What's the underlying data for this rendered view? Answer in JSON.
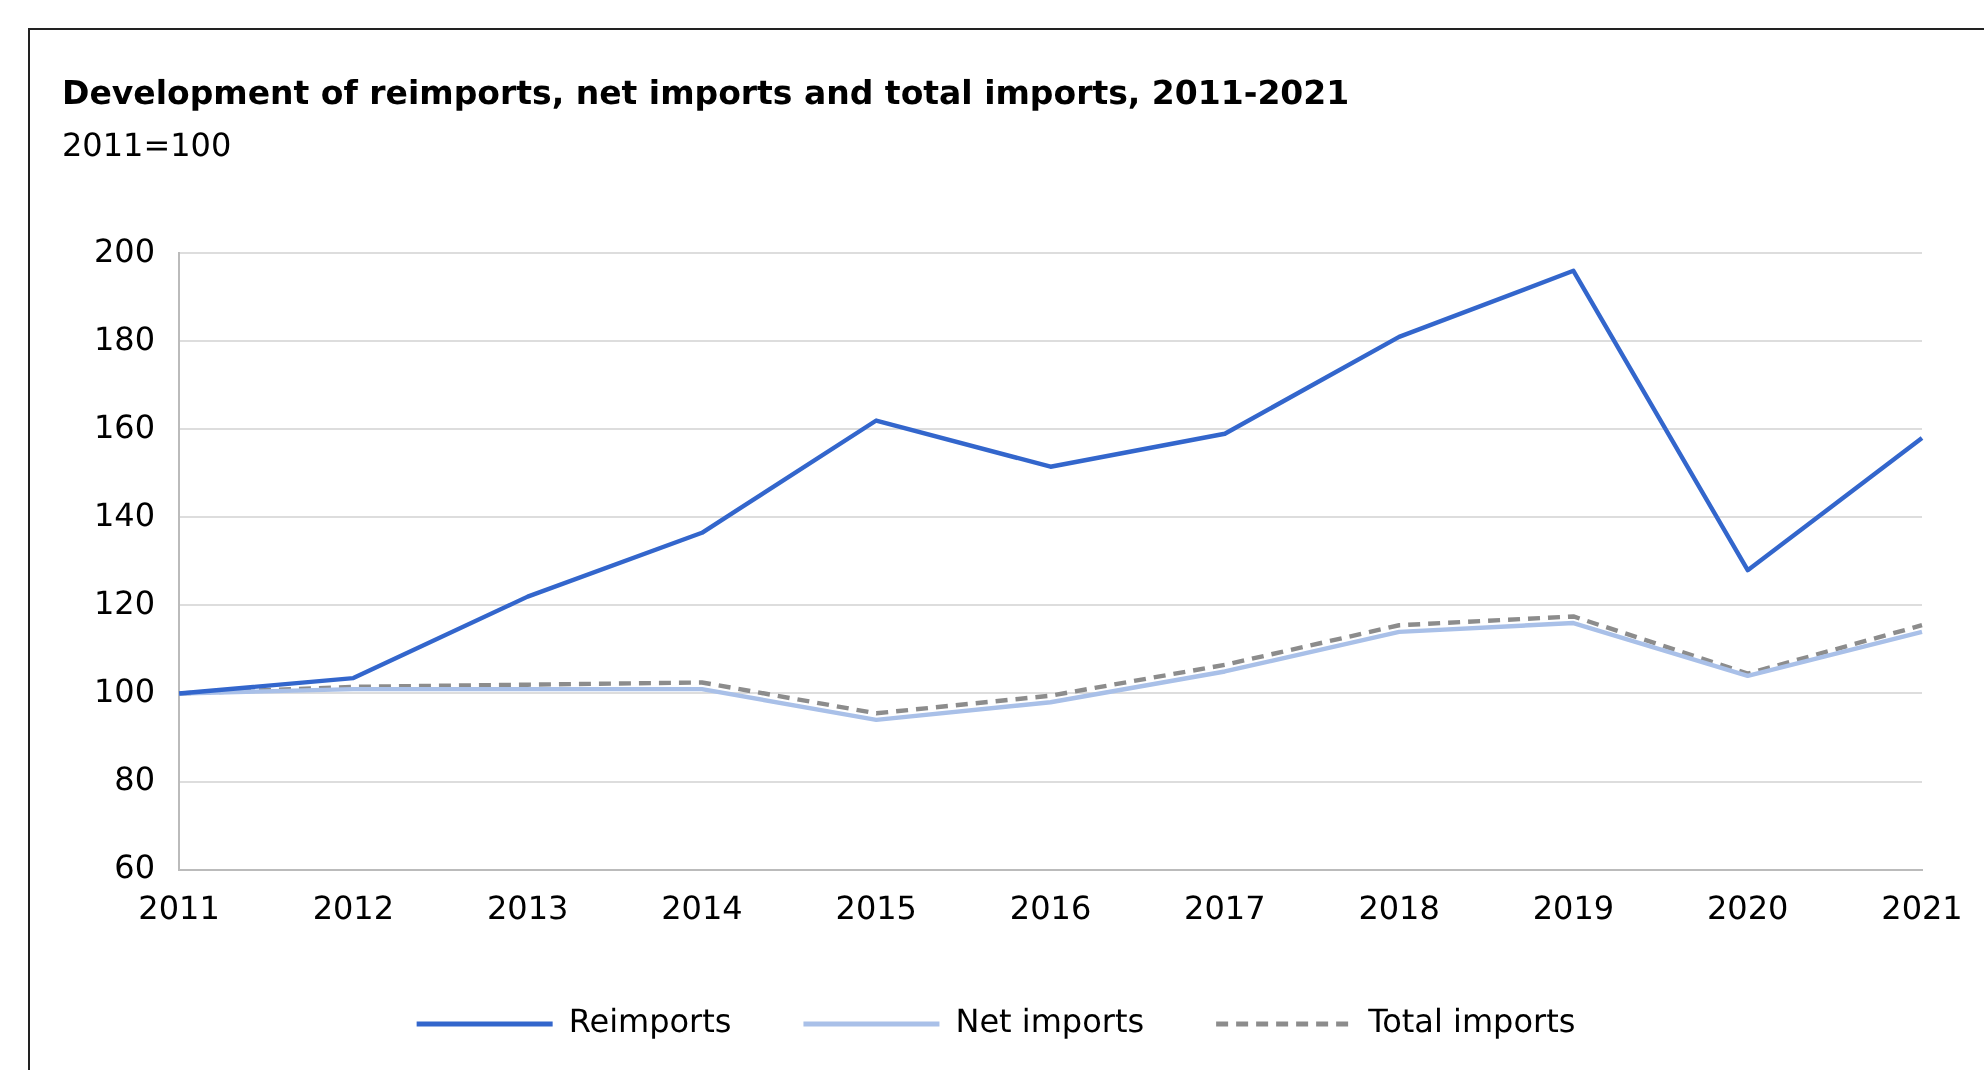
{
  "chart_data": {
    "type": "line",
    "title": "Development of reimports, net imports and total imports, 2011-2021",
    "subtitle": "2011=100",
    "categories": [
      "2011",
      "2012",
      "2013",
      "2014",
      "2015",
      "2016",
      "2017",
      "2018",
      "2019",
      "2020",
      "2021"
    ],
    "series": [
      {
        "name": "Reimports",
        "color": "#3366cc",
        "values": [
          100,
          103.5,
          122,
          136.5,
          162,
          151.5,
          159,
          181,
          196,
          128,
          158
        ]
      },
      {
        "name": "Net imports",
        "color": "#a9c0e8",
        "values": [
          100,
          101,
          101,
          101,
          94,
          98,
          105,
          114,
          116,
          104,
          114
        ]
      },
      {
        "name": "Total imports",
        "color": "#8c8c8c",
        "line_style": "dashed",
        "values": [
          100,
          101.5,
          102,
          102.5,
          95.5,
          99.5,
          106.5,
          115.5,
          117.5,
          104.5,
          115.5
        ]
      }
    ],
    "ylim": [
      60,
      200
    ],
    "yticks": [
      60,
      80,
      100,
      120,
      140,
      160,
      180,
      200
    ],
    "grid": "y",
    "legend": "bottom",
    "marker": "none"
  }
}
